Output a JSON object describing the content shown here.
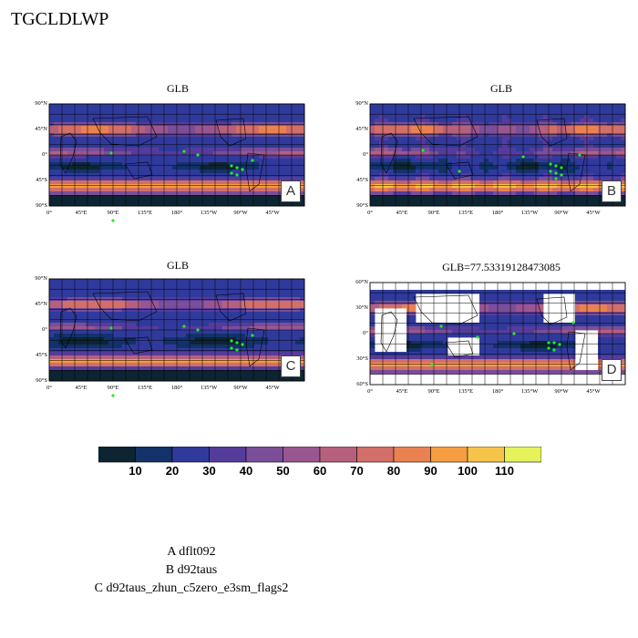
{
  "page_title": "TGCLDLWP",
  "chart_data": [
    {
      "type": "heatmap",
      "panel_label": "A",
      "title": "GLB",
      "ytick_labels": [
        "90°N",
        "45°N",
        "0°",
        "45°S",
        "90°S"
      ],
      "xtick_labels": [
        "0°",
        "45°E",
        "90°E",
        "135°E",
        "180°",
        "135°W",
        "90°W",
        "45°W"
      ]
    },
    {
      "type": "heatmap",
      "panel_label": "B",
      "title": "GLB",
      "ytick_labels": [
        "90°N",
        "45°N",
        "0°",
        "45°S",
        "90°S"
      ],
      "xtick_labels": [
        "0°",
        "45°E",
        "90°E",
        "135°E",
        "180°",
        "135°W",
        "90°W",
        "45°W"
      ]
    },
    {
      "type": "heatmap",
      "panel_label": "C",
      "title": "GLB",
      "ytick_labels": [
        "90°N",
        "45°N",
        "0°",
        "45°S",
        "90°S"
      ],
      "xtick_labels": [
        "0°",
        "45°E",
        "90°E",
        "135°E",
        "180°",
        "135°W",
        "90°W",
        "45°W"
      ]
    },
    {
      "type": "heatmap",
      "panel_label": "D",
      "title": "GLB=77.53319128473085",
      "ytick_labels": [
        "60°N",
        "30°N",
        "0°",
        "30°S",
        "60°S"
      ],
      "xtick_labels": [
        "0°",
        "45°E",
        "90°E",
        "135°E",
        "180°",
        "135°W",
        "90°W",
        "45°W"
      ]
    }
  ],
  "colorbar": {
    "labels": [
      "10",
      "20",
      "30",
      "40",
      "50",
      "60",
      "70",
      "80",
      "90",
      "100",
      "110"
    ],
    "colors": [
      "#0d2533",
      "#13326a",
      "#303a9c",
      "#553c9c",
      "#7a4e98",
      "#9a5690",
      "#b6607e",
      "#d26f68",
      "#e98250",
      "#f59d40",
      "#f7c44a",
      "#e6f25a"
    ]
  },
  "legend": {
    "lines": [
      "A  dflt092",
      "B  d92taus",
      "C  d92taus_zhun_c5zero_e3sm_flags2"
    ]
  },
  "marker_color": "#22ee22"
}
